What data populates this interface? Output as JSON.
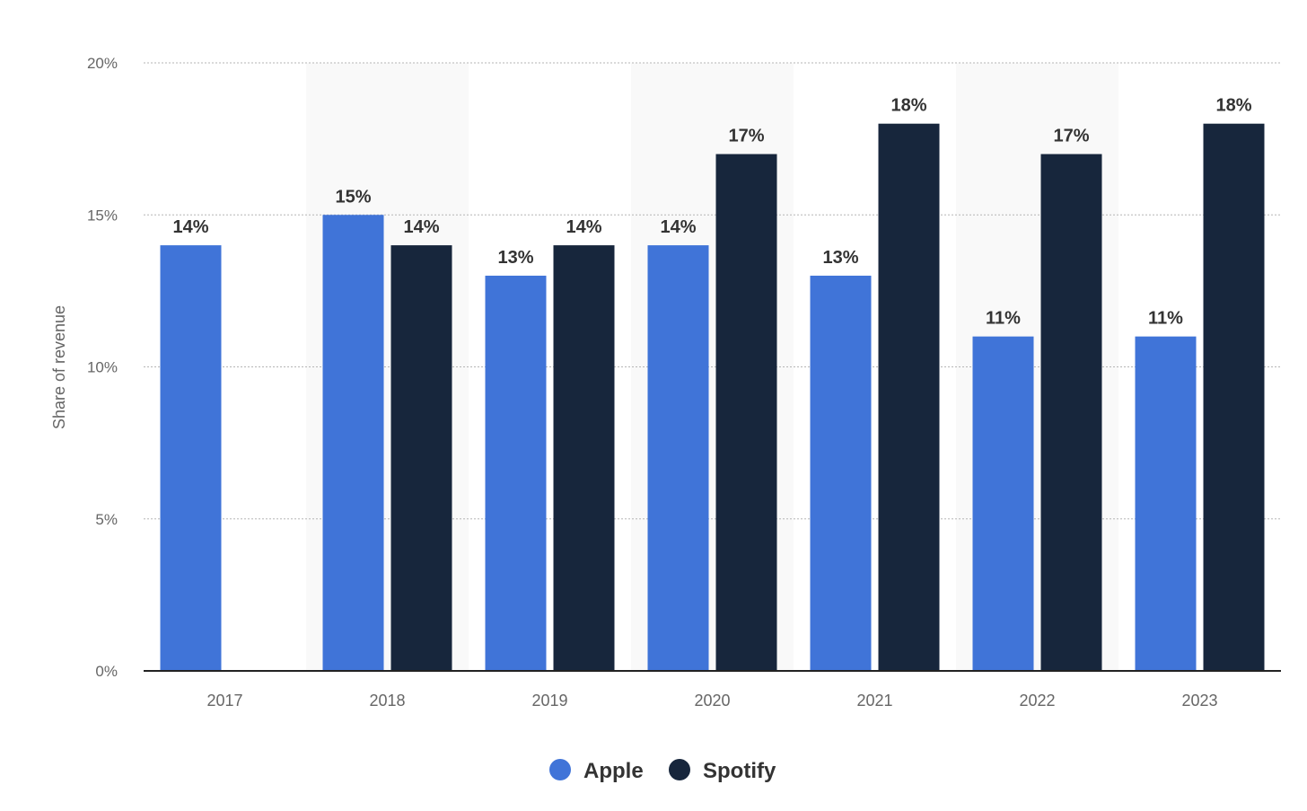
{
  "chart_data": {
    "type": "bar",
    "categories": [
      "2017",
      "2018",
      "2019",
      "2020",
      "2021",
      "2022",
      "2023"
    ],
    "series": [
      {
        "name": "Apple",
        "color": "#4074d8",
        "values": [
          14,
          15,
          13,
          14,
          13,
          11,
          11
        ],
        "labels": [
          "14%",
          "15%",
          "13%",
          "14%",
          "13%",
          "11%",
          "11%"
        ]
      },
      {
        "name": "Spotify",
        "color": "#17263c",
        "values": [
          null,
          14,
          14,
          17,
          18,
          17,
          18
        ],
        "labels": [
          null,
          "14%",
          "14%",
          "17%",
          "18%",
          "17%",
          "18%"
        ]
      }
    ],
    "title": "",
    "xlabel": "",
    "ylabel": "Share of revenue",
    "ylim": [
      0,
      20
    ],
    "yticks": [
      0,
      5,
      10,
      15,
      20
    ],
    "ytick_labels": [
      "0%",
      "5%",
      "10%",
      "15%",
      "20%"
    ],
    "grid": true,
    "legend_position": "bottom-center",
    "alternating_band_color": "#f9f9f9"
  }
}
